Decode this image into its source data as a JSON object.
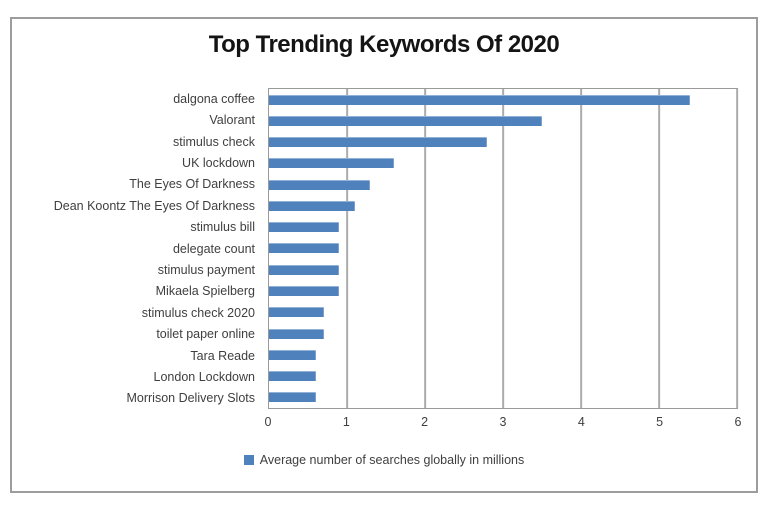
{
  "chart_data": {
    "type": "bar",
    "orientation": "horizontal",
    "title": "Top Trending Keywords Of 2020",
    "categories": [
      "dalgona coffee",
      "Valorant",
      "stimulus check",
      "UK lockdown",
      "The Eyes Of Darkness",
      "Dean Koontz The Eyes Of Darkness",
      "stimulus bill",
      "delegate count",
      "stimulus payment",
      "Mikaela Spielberg",
      "stimulus check 2020",
      "toilet paper online",
      "Tara Reade",
      "London Lockdown",
      "Morrison Delivery Slots"
    ],
    "values": [
      5.4,
      3.5,
      2.8,
      1.6,
      1.3,
      1.1,
      0.9,
      0.9,
      0.9,
      0.9,
      0.7,
      0.7,
      0.6,
      0.6,
      0.6
    ],
    "series_name": "Average number of searches globally in millions",
    "xlabel": "",
    "ylabel": "",
    "xlim": [
      0,
      6
    ],
    "x_ticks": [
      0,
      1,
      2,
      3,
      4,
      5,
      6
    ],
    "grid": true,
    "legend_position": "bottom",
    "bar_color": "#4F81BD",
    "gridline_color": "#ACACAC",
    "axis_text_color": "#3F3F3F",
    "title_color": "#141414",
    "frame_border_color": "#9D9D9D"
  }
}
